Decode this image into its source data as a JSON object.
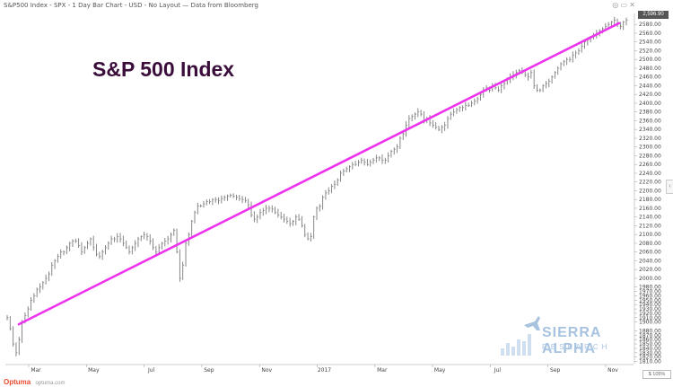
{
  "header": {
    "title": "S&P500 Index - SPX - 1 Day Bar Chart - USD - No Layout — Data from Bloomberg"
  },
  "overlay_title": "S&P 500 Index",
  "last_price": "2,596.90",
  "scale_mode": "$ 105% ",
  "footer": {
    "brand": "Optuma",
    "url": "optuma.com"
  },
  "watermark": {
    "line1": "SIERRA ALPHA",
    "line2": "RESEARCH"
  },
  "colors": {
    "bars": "#7a7a7a",
    "trendline": "#ee33ee",
    "title": "#3a0d3a",
    "watermark": "#a7c3e0"
  },
  "chart_data": {
    "type": "bar",
    "title": "S&P 500 Index",
    "y_axis": {
      "side": "right",
      "range": [
        1805,
        2605
      ],
      "ticks": [
        1810,
        1820,
        1830,
        1840,
        1850,
        1860,
        1870,
        1880,
        1900,
        1910,
        1920,
        1930,
        1940,
        1950,
        1960,
        1970,
        1980,
        2000,
        2020,
        2040,
        2060,
        2080,
        2100,
        2120,
        2140,
        2160,
        2180,
        2200,
        2220,
        2240,
        2260,
        2280,
        2300,
        2320,
        2340,
        2360,
        2380,
        2400,
        2420,
        2440,
        2460,
        2480,
        2500,
        2520,
        2540,
        2560,
        2580
      ]
    },
    "x_axis": {
      "labels": [
        "Mar",
        "May",
        "Jul",
        "Sep",
        "Nov",
        "2017",
        "Mar",
        "May",
        "Jul",
        "Sep",
        "Nov"
      ]
    },
    "grid": false,
    "series": [
      {
        "values": [
          1910,
          1885,
          1850,
          1830,
          1860,
          1900,
          1915,
          1930,
          1950,
          1960,
          1975,
          1980,
          1990,
          2000,
          2010,
          2030,
          2040,
          2050,
          2060,
          2060,
          2070,
          2080,
          2085,
          2085,
          2075,
          2060,
          2070,
          2080,
          2090,
          2070,
          2055,
          2050,
          2060,
          2070,
          2080,
          2090,
          2090,
          2095,
          2090,
          2080,
          2070,
          2060,
          2070,
          2080,
          2090,
          2095,
          2100,
          2095,
          2085,
          2070,
          2060,
          2070,
          2080,
          2085,
          2090,
          2100,
          2110,
          2060,
          2000,
          2030,
          2080,
          2100,
          2130,
          2150,
          2165,
          2165,
          2170,
          2175,
          2175,
          2180,
          2180,
          2178,
          2182,
          2185,
          2188,
          2190,
          2188,
          2185,
          2182,
          2180,
          2178,
          2168,
          2145,
          2135,
          2140,
          2150,
          2155,
          2160,
          2160,
          2158,
          2150,
          2145,
          2140,
          2135,
          2130,
          2125,
          2130,
          2140,
          2135,
          2120,
          2100,
          2090,
          2095,
          2140,
          2160,
          2165,
          2185,
          2195,
          2200,
          2210,
          2215,
          2225,
          2240,
          2245,
          2250,
          2255,
          2260,
          2260,
          2265,
          2270,
          2265,
          2260,
          2265,
          2270,
          2275,
          2275,
          2270,
          2270,
          2280,
          2290,
          2295,
          2300,
          2320,
          2330,
          2350,
          2365,
          2370,
          2375,
          2380,
          2375,
          2360,
          2365,
          2355,
          2350,
          2345,
          2340,
          2345,
          2350,
          2365,
          2375,
          2380,
          2385,
          2390,
          2390,
          2395,
          2395,
          2400,
          2405,
          2410,
          2420,
          2430,
          2435,
          2430,
          2440,
          2435,
          2430,
          2440,
          2445,
          2455,
          2460,
          2465,
          2470,
          2475,
          2470,
          2465,
          2460,
          2470,
          2440,
          2430,
          2430,
          2440,
          2445,
          2450,
          2460,
          2470,
          2480,
          2490,
          2495,
          2500,
          2500,
          2510,
          2515,
          2520,
          2530,
          2540,
          2545,
          2550,
          2555,
          2560,
          2565,
          2570,
          2575,
          2580,
          2585,
          2590,
          2580,
          2575,
          2585,
          2590
        ],
        "note_units": "approx. daily close"
      }
    ],
    "trendline": {
      "from": [
        "Feb 2016",
        1895
      ],
      "to": [
        "Nov 2017",
        2583
      ]
    }
  }
}
